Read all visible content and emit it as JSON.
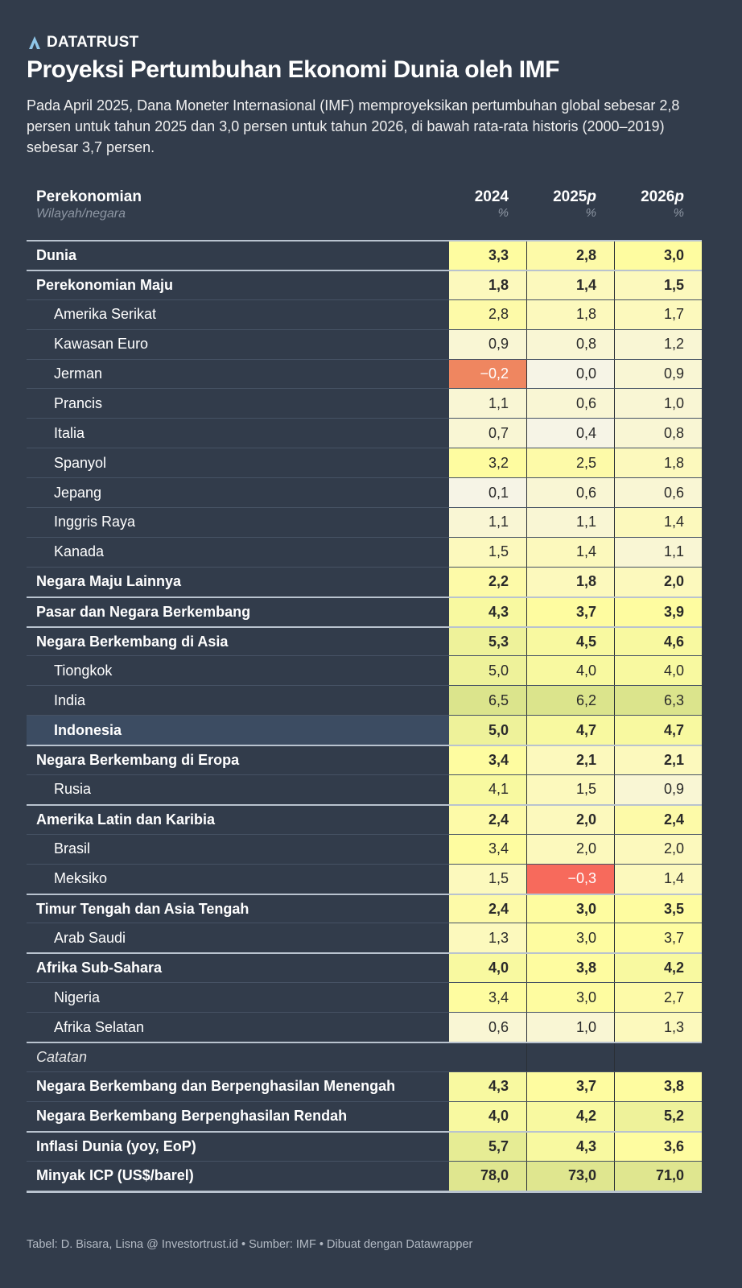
{
  "brand": "DATATRUST",
  "title": "Proyeksi Pertumbuhan Ekonomi Dunia oleh IMF",
  "description": "Pada April 2025, Dana Moneter Internasional (IMF) memproyeksikan pertumbuhan global sebesar 2,8 persen untuk tahun 2025 dan 3,0 persen untuk tahun 2026, di bawah rata-rata historis (2000–2019) sebesar 3,7 persen.",
  "footer": "Tabel: D. Bisara, Lisna @ Investortrust.id • Sumber: IMF • Dibuat dengan Datawrapper",
  "chart_data": {
    "type": "table",
    "header": {
      "label": "Perekonomian",
      "sublabel": "Wilayah/negara",
      "columns": [
        {
          "year": "2024",
          "suffix": "",
          "unit": "%"
        },
        {
          "year": "2025",
          "suffix": "p",
          "unit": "%"
        },
        {
          "year": "2026",
          "suffix": "p",
          "unit": "%"
        }
      ]
    },
    "rows": [
      {
        "label": "Dunia",
        "values": [
          "3,3",
          "2,8",
          "3,0"
        ],
        "bold": true,
        "sep": true
      },
      {
        "label": "Perekonomian Maju",
        "values": [
          "1,8",
          "1,4",
          "1,5"
        ],
        "bold": true,
        "sep": true
      },
      {
        "label": "Amerika Serikat",
        "values": [
          "2,8",
          "1,8",
          "1,7"
        ],
        "indent": true
      },
      {
        "label": "Kawasan Euro",
        "values": [
          "0,9",
          "0,8",
          "1,2"
        ],
        "indent": true
      },
      {
        "label": "Jerman",
        "values": [
          "−0,2",
          "0,0",
          "0,9"
        ],
        "indent": true
      },
      {
        "label": "Prancis",
        "values": [
          "1,1",
          "0,6",
          "1,0"
        ],
        "indent": true
      },
      {
        "label": "Italia",
        "values": [
          "0,7",
          "0,4",
          "0,8"
        ],
        "indent": true
      },
      {
        "label": "Spanyol",
        "values": [
          "3,2",
          "2,5",
          "1,8"
        ],
        "indent": true
      },
      {
        "label": "Jepang",
        "values": [
          "0,1",
          "0,6",
          "0,6"
        ],
        "indent": true
      },
      {
        "label": "Inggris Raya",
        "values": [
          "1,1",
          "1,1",
          "1,4"
        ],
        "indent": true
      },
      {
        "label": "Kanada",
        "values": [
          "1,5",
          "1,4",
          "1,1"
        ],
        "indent": true
      },
      {
        "label": "Negara Maju Lainnya",
        "values": [
          "2,2",
          "1,8",
          "2,0"
        ],
        "bold": true
      },
      {
        "label": "Pasar dan Negara Berkembang",
        "values": [
          "4,3",
          "3,7",
          "3,9"
        ],
        "bold": true,
        "sep": true
      },
      {
        "label": "Negara Berkembang di Asia",
        "values": [
          "5,3",
          "4,5",
          "4,6"
        ],
        "bold": true,
        "sep": true
      },
      {
        "label": "Tiongkok",
        "values": [
          "5,0",
          "4,0",
          "4,0"
        ],
        "indent": true
      },
      {
        "label": "India",
        "values": [
          "6,5",
          "6,2",
          "6,3"
        ],
        "indent": true
      },
      {
        "label": "Indonesia",
        "values": [
          "5,0",
          "4,7",
          "4,7"
        ],
        "indent": true,
        "bold": true,
        "highlight": true
      },
      {
        "label": "Negara Berkembang di Eropa",
        "values": [
          "3,4",
          "2,1",
          "2,1"
        ],
        "bold": true,
        "sep": true
      },
      {
        "label": "Rusia",
        "values": [
          "4,1",
          "1,5",
          "0,9"
        ],
        "indent": true
      },
      {
        "label": "Amerika Latin dan Karibia",
        "values": [
          "2,4",
          "2,0",
          "2,4"
        ],
        "bold": true,
        "sep": true
      },
      {
        "label": "Brasil",
        "values": [
          "3,4",
          "2,0",
          "2,0"
        ],
        "indent": true
      },
      {
        "label": "Meksiko",
        "values": [
          "1,5",
          "−0,3",
          "1,4"
        ],
        "indent": true
      },
      {
        "label": "Timur Tengah dan Asia Tengah",
        "values": [
          "2,4",
          "3,0",
          "3,5"
        ],
        "bold": true,
        "sep": true
      },
      {
        "label": "Arab Saudi",
        "values": [
          "1,3",
          "3,0",
          "3,7"
        ],
        "indent": true
      },
      {
        "label": "Afrika Sub-Sahara",
        "values": [
          "4,0",
          "3,8",
          "4,2"
        ],
        "bold": true,
        "sep": true
      },
      {
        "label": "Nigeria",
        "values": [
          "3,4",
          "3,0",
          "2,7"
        ],
        "indent": true
      },
      {
        "label": "Afrika Selatan",
        "values": [
          "0,6",
          "1,0",
          "1,3"
        ],
        "indent": true
      },
      {
        "label": "Catatan",
        "values": [
          "",
          "",
          ""
        ],
        "note": true,
        "sep": true
      },
      {
        "label": "Negara Berkembang dan Berpenghasilan Menengah",
        "values": [
          "4,3",
          "3,7",
          "3,8"
        ],
        "bold": true
      },
      {
        "label": "Negara Berkembang Berpenghasilan Rendah",
        "values": [
          "4,0",
          "4,2",
          "5,2"
        ],
        "bold": true
      },
      {
        "label": "Inflasi Dunia (yoy, EoP)",
        "values": [
          "5,7",
          "4,3",
          "3,6"
        ],
        "bold": true,
        "sep": true
      },
      {
        "label": "Minyak ICP (US$/barel)",
        "values": [
          "78,0",
          "73,0",
          "71,0"
        ],
        "bold": true
      }
    ]
  }
}
